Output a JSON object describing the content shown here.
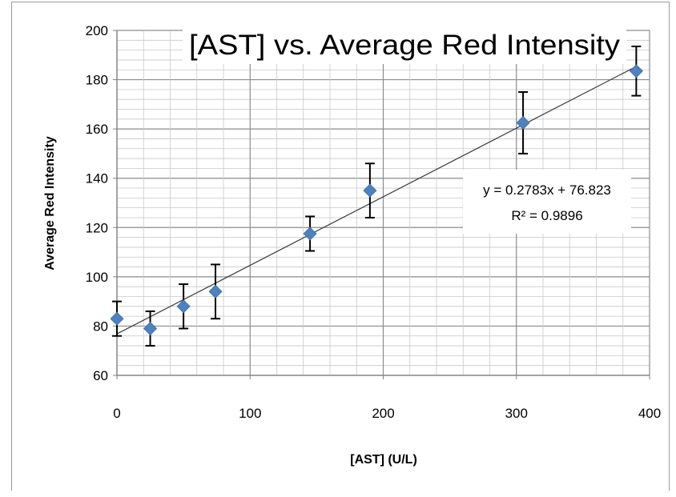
{
  "chart_data": {
    "type": "scatter",
    "title": "[AST] vs. Average Red Intensity",
    "xlabel": "[AST] (U/L)",
    "ylabel": "Average Red Intensity",
    "xlim": [
      0,
      400
    ],
    "ylim": [
      60,
      200
    ],
    "x_ticks": [
      "0",
      "100",
      "200",
      "300",
      "400"
    ],
    "y_ticks": [
      "60",
      "80",
      "100",
      "120",
      "140",
      "160",
      "180",
      "200"
    ],
    "grid": true,
    "legend": "none",
    "marker_color": "#4f81bd",
    "points": [
      {
        "x": 0,
        "y": 83,
        "err": 7
      },
      {
        "x": 25,
        "y": 79,
        "err": 7
      },
      {
        "x": 50,
        "y": 88,
        "err": 9
      },
      {
        "x": 74,
        "y": 94,
        "err": 11
      },
      {
        "x": 145,
        "y": 117.5,
        "err": 7
      },
      {
        "x": 190,
        "y": 135,
        "err": 11
      },
      {
        "x": 305,
        "y": 162.5,
        "err": 12.5
      },
      {
        "x": 390,
        "y": 183.5,
        "err": 10
      }
    ],
    "trendline": {
      "slope": 0.2783,
      "intercept": 76.823,
      "equation_label": "y = 0.2783x + 76.823",
      "r2_label": "R² = 0.9896"
    }
  }
}
